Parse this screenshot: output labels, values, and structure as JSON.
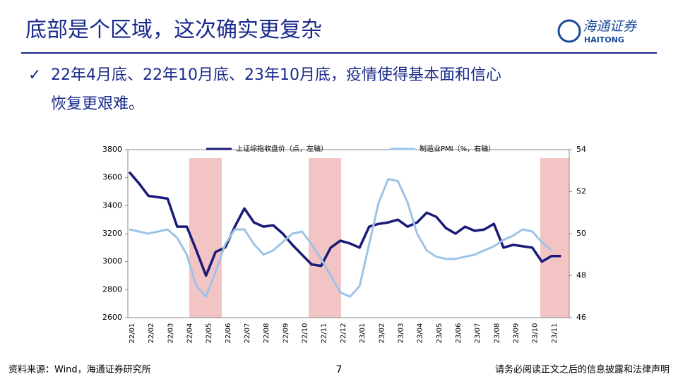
{
  "header": {
    "title": "底部是个区域，这次确实更复杂",
    "logo_cn": "海通证券",
    "logo_en": "HAITONG"
  },
  "bullet": {
    "line1": "22年4月底、22年10月底、23年10月底，疫情使得基本面和信心",
    "line2": "恢复更艰难。"
  },
  "chart_data": {
    "type": "line",
    "categories": [
      "22/01",
      null,
      "22/02",
      null,
      "22/03",
      null,
      "22/04",
      null,
      "22/05",
      null,
      "22/06",
      null,
      "22/07",
      null,
      "22/08",
      null,
      "22/09",
      null,
      "22/10",
      null,
      "22/11",
      null,
      "22/12",
      null,
      "23/01",
      null,
      "23/02",
      null,
      "23/03",
      null,
      "23/04",
      null,
      "23/05",
      null,
      "23/06",
      null,
      "23/07",
      null,
      "23/08",
      null,
      "23/09",
      null,
      "23/10",
      null,
      "23/11",
      null
    ],
    "series": [
      {
        "name": "上证综指收盘价（点，左轴）",
        "color": "#1a1a7a",
        "values": [
          3640,
          3560,
          3470,
          3460,
          3450,
          3250,
          3250,
          3080,
          2900,
          3070,
          3100,
          3250,
          3380,
          3280,
          3250,
          3260,
          3200,
          3120,
          3050,
          2980,
          2970,
          3100,
          3150,
          3130,
          3100,
          3250,
          3270,
          3280,
          3300,
          3250,
          3280,
          3350,
          3320,
          3240,
          3200,
          3250,
          3220,
          3230,
          3270,
          3100,
          3120,
          3110,
          3100,
          3000,
          3040,
          3040
        ]
      },
      {
        "name": "制造业PMI（%，右轴）",
        "color": "#9dc3e6",
        "axis": "y2",
        "values": [
          50.2,
          50.1,
          50.0,
          50.1,
          50.2,
          49.8,
          49.0,
          47.5,
          47.0,
          48.2,
          49.5,
          50.2,
          50.2,
          49.5,
          49.0,
          49.2,
          49.6,
          50.0,
          50.1,
          49.5,
          48.8,
          48.0,
          47.2,
          47.0,
          47.5,
          49.5,
          51.5,
          52.6,
          52.5,
          51.5,
          50.0,
          49.2,
          48.9,
          48.8,
          48.8,
          48.9,
          49.0,
          49.2,
          49.4,
          49.7,
          49.9,
          50.2,
          50.1,
          49.6,
          49.2,
          null
        ]
      }
    ],
    "ylim": [
      2600,
      3800
    ],
    "yticks": [
      2600,
      2800,
      3000,
      3200,
      3400,
      3600,
      3800
    ],
    "y2lim": [
      46,
      54
    ],
    "y2ticks": [
      46,
      48,
      50,
      52,
      54
    ]
  },
  "footer": {
    "source": "资料来源：Wind，海通证券研究所",
    "page": "7",
    "disclaimer": "请务必阅读正文之后的信息披露和法律声明"
  }
}
